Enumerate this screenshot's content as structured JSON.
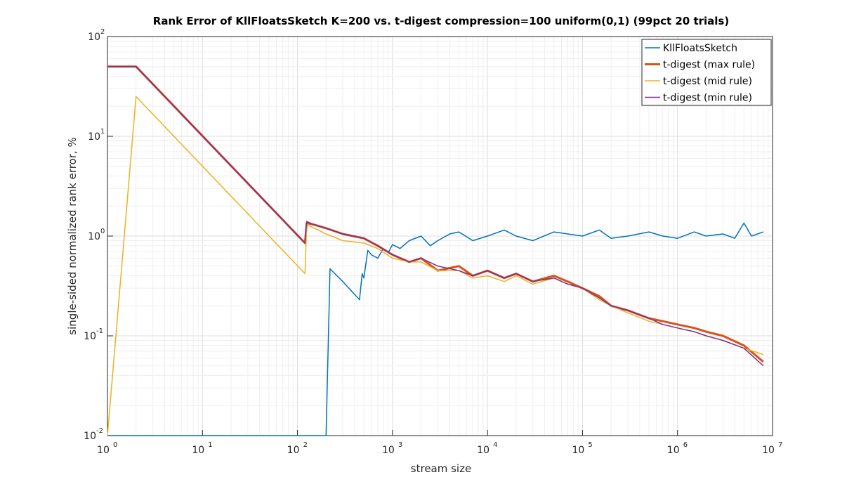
{
  "chart_data": {
    "type": "line",
    "title": "Rank Error of KllFloatsSketch K=200 vs. t-digest compression=100 uniform(0,1) (99pct 20 trials)",
    "xlabel": "stream size",
    "ylabel": "single-sided normalized rank error, %",
    "xscale": "log",
    "yscale": "log",
    "xlim": [
      1,
      10000000
    ],
    "ylim": [
      0.01,
      100
    ],
    "grid": true,
    "minor_grid": true,
    "legend_position": "top-right",
    "x_ticks": [
      {
        "base": "10",
        "exp": "0",
        "v": 1
      },
      {
        "base": "10",
        "exp": "1",
        "v": 10
      },
      {
        "base": "10",
        "exp": "2",
        "v": 100
      },
      {
        "base": "10",
        "exp": "3",
        "v": 1000
      },
      {
        "base": "10",
        "exp": "4",
        "v": 10000
      },
      {
        "base": "10",
        "exp": "5",
        "v": 100000
      },
      {
        "base": "10",
        "exp": "6",
        "v": 1000000
      },
      {
        "base": "10",
        "exp": "7",
        "v": 10000000
      }
    ],
    "y_ticks": [
      {
        "base": "10",
        "exp": "-2",
        "v": 0.01
      },
      {
        "base": "10",
        "exp": "-1",
        "v": 0.1
      },
      {
        "base": "10",
        "exp": "0",
        "v": 1
      },
      {
        "base": "10",
        "exp": "1",
        "v": 10
      },
      {
        "base": "10",
        "exp": "2",
        "v": 100
      }
    ],
    "series": [
      {
        "name": "KllFloatsSketch",
        "color": "#0072BD",
        "width": 1.5,
        "x": [
          1,
          2,
          5,
          10,
          50,
          100,
          150,
          199,
          200,
          220,
          300,
          400,
          450,
          480,
          500,
          550,
          600,
          700,
          800,
          900,
          1000,
          1200,
          1500,
          2000,
          2500,
          3000,
          4000,
          5000,
          7000,
          10000,
          15000,
          20000,
          30000,
          50000,
          70000,
          100000,
          150000,
          200000,
          300000,
          500000,
          700000,
          1000000,
          1500000,
          2000000,
          3000000,
          4000000,
          5000000,
          6000000,
          8000000
        ],
        "y": [
          0.01,
          0.01,
          0.01,
          0.01,
          0.01,
          0.01,
          0.01,
          0.01,
          0.01,
          0.47,
          0.35,
          0.26,
          0.23,
          0.42,
          0.38,
          0.72,
          0.65,
          0.6,
          0.75,
          0.68,
          0.82,
          0.75,
          0.9,
          1.0,
          0.8,
          0.9,
          1.05,
          1.1,
          0.9,
          1.0,
          1.15,
          1.0,
          0.9,
          1.1,
          1.05,
          1.0,
          1.15,
          0.95,
          1.0,
          1.1,
          1.0,
          0.95,
          1.1,
          1.0,
          1.05,
          0.95,
          1.35,
          1.0,
          1.1
        ]
      },
      {
        "name": "t-digest (max rule)",
        "color": "#D95319",
        "width": 3,
        "x": [
          1,
          2,
          120,
          125,
          150,
          200,
          300,
          500,
          700,
          1000,
          1500,
          2000,
          3000,
          5000,
          7000,
          10000,
          15000,
          20000,
          30000,
          50000,
          70000,
          100000,
          150000,
          200000,
          300000,
          500000,
          700000,
          1000000,
          1500000,
          2000000,
          3000000,
          5000000,
          8000000
        ],
        "y": [
          50,
          50,
          0.85,
          1.35,
          1.3,
          1.2,
          1.05,
          0.95,
          0.8,
          0.65,
          0.55,
          0.6,
          0.45,
          0.5,
          0.4,
          0.45,
          0.38,
          0.42,
          0.35,
          0.4,
          0.35,
          0.3,
          0.25,
          0.2,
          0.18,
          0.15,
          0.14,
          0.13,
          0.12,
          0.11,
          0.1,
          0.08,
          0.055
        ]
      },
      {
        "name": "t-digest (mid rule)",
        "color": "#EDB120",
        "width": 1.5,
        "x": [
          1,
          2,
          120,
          125,
          150,
          200,
          300,
          500,
          700,
          1000,
          1500,
          2000,
          3000,
          5000,
          7000,
          10000,
          15000,
          20000,
          30000,
          50000,
          70000,
          100000,
          150000,
          200000,
          300000,
          500000,
          700000,
          1000000,
          1500000,
          2000000,
          3000000,
          5000000,
          8000000
        ],
        "y": [
          0.01,
          25,
          0.42,
          1.3,
          1.2,
          1.05,
          0.9,
          0.85,
          0.75,
          0.6,
          0.55,
          0.55,
          0.45,
          0.45,
          0.38,
          0.4,
          0.35,
          0.4,
          0.33,
          0.38,
          0.33,
          0.3,
          0.23,
          0.2,
          0.17,
          0.14,
          0.13,
          0.12,
          0.11,
          0.1,
          0.09,
          0.075,
          0.065
        ]
      },
      {
        "name": "t-digest (min rule)",
        "color": "#7E2F8E",
        "width": 1.5,
        "x": [
          1,
          2,
          120,
          125,
          150,
          200,
          300,
          500,
          700,
          1000,
          1500,
          2000,
          3000,
          5000,
          7000,
          10000,
          15000,
          20000,
          30000,
          50000,
          70000,
          100000,
          150000,
          200000,
          300000,
          500000,
          700000,
          1000000,
          1500000,
          2000000,
          3000000,
          5000000,
          8000000
        ],
        "y": [
          50,
          50,
          0.85,
          1.4,
          1.3,
          1.2,
          1.05,
          0.95,
          0.8,
          0.65,
          0.55,
          0.6,
          0.5,
          0.45,
          0.4,
          0.45,
          0.38,
          0.42,
          0.35,
          0.38,
          0.33,
          0.3,
          0.24,
          0.2,
          0.18,
          0.15,
          0.13,
          0.12,
          0.11,
          0.1,
          0.09,
          0.075,
          0.05
        ]
      }
    ]
  }
}
